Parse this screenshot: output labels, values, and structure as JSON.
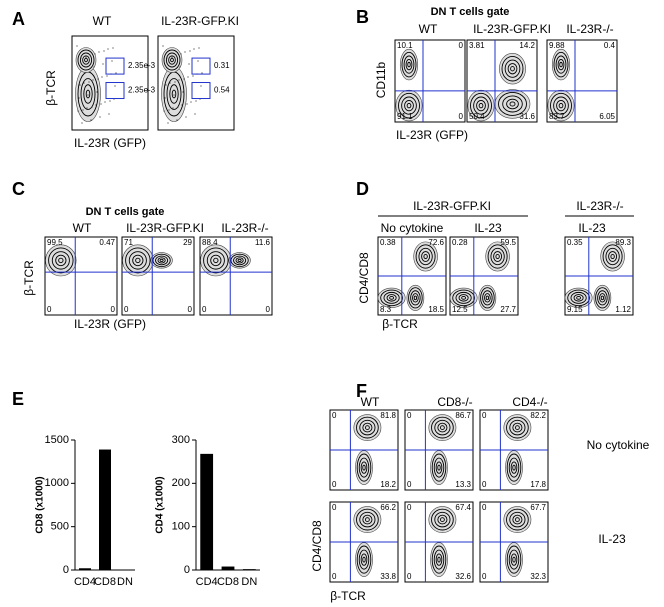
{
  "panels": [
    {
      "label": "A",
      "columns": [
        "WT",
        "IL-23R-GFP.KI"
      ],
      "y_axis": "β-TCR",
      "x_axis": "IL-23R (GFP)",
      "plots": [
        {
          "gates": [
            "2.35e-3",
            "2.35e-3"
          ]
        },
        {
          "gates": [
            "0.31",
            "0.54"
          ]
        }
      ]
    },
    {
      "label": "B",
      "title": "DN T cells gate",
      "columns": [
        "WT",
        "IL-23R-GFP.KI",
        "IL-23R-/-"
      ],
      "y_axis": "CD11b",
      "x_axis": "IL-23R (GFP)",
      "plots": [
        {
          "quadrants": [
            "10.1",
            "0",
            "91.1",
            "0"
          ]
        },
        {
          "quadrants": [
            "3.81",
            "14.2",
            "50.4",
            "31.6"
          ]
        },
        {
          "quadrants": [
            "9.88",
            "0.4",
            "83.7",
            "6.05"
          ]
        }
      ]
    },
    {
      "label": "C",
      "title": "DN T cells gate",
      "columns": [
        "WT",
        "IL-23R-GFP.KI",
        "IL-23R-/-"
      ],
      "y_axis": "β-TCR",
      "x_axis": "IL-23R (GFP)",
      "plots": [
        {
          "quadrants": [
            "99.5",
            "0.47",
            "0",
            "0"
          ]
        },
        {
          "quadrants": [
            "71",
            "29",
            "0",
            "0"
          ]
        },
        {
          "quadrants": [
            "88.4",
            "11.6",
            "0",
            "0"
          ]
        }
      ]
    },
    {
      "label": "D",
      "groups": [
        "IL-23R-GFP.KI",
        "IL-23R-/-"
      ],
      "columns": [
        "No cytokine",
        "IL-23",
        "IL-23"
      ],
      "y_axis": "CD4/CD8",
      "x_axis": "β-TCR",
      "plots": [
        {
          "quadrants": [
            "0.38",
            "72.6",
            "8.3",
            "18.5"
          ]
        },
        {
          "quadrants": [
            "0.28",
            "59.5",
            "12.5",
            "27.7"
          ]
        },
        {
          "quadrants": [
            "0.35",
            "89.3",
            "9.15",
            "1.12"
          ]
        }
      ]
    },
    {
      "label": "E"
    },
    {
      "label": "F",
      "columns": [
        "WT",
        "CD8-/-",
        "CD4-/-"
      ],
      "rows": [
        "No cytokine",
        "IL-23"
      ],
      "y_axis": "CD4/CD8",
      "x_axis": "β-TCR",
      "plots": [
        {
          "quadrants": [
            "0",
            "81.8",
            "0",
            "18.2"
          ]
        },
        {
          "quadrants": [
            "0",
            "86.7",
            "0",
            "13.3"
          ]
        },
        {
          "quadrants": [
            "0",
            "82.2",
            "0",
            "17.8"
          ]
        },
        {
          "quadrants": [
            "0",
            "66.2",
            "0",
            "33.8"
          ]
        },
        {
          "quadrants": [
            "0",
            "67.4",
            "0",
            "32.6"
          ]
        },
        {
          "quadrants": [
            "0",
            "67.7",
            "0",
            "32.3"
          ]
        }
      ]
    }
  ],
  "chart_data": [
    {
      "type": "bar",
      "y_label": "CD8 (x1000)",
      "categories": [
        "CD4",
        "CD8",
        "DN"
      ],
      "values": [
        20,
        1390,
        5
      ],
      "color": "#000000",
      "ylim": [
        0,
        1500
      ],
      "yticks": [
        0,
        500,
        1000,
        1500
      ]
    },
    {
      "type": "bar",
      "y_label": "CD4 (x1000)",
      "categories": [
        "CD4",
        "CD8",
        "DN"
      ],
      "values": [
        268,
        8,
        2
      ],
      "color": "#000000",
      "ylim": [
        0,
        300
      ],
      "yticks": [
        0,
        100,
        200,
        300
      ]
    }
  ]
}
